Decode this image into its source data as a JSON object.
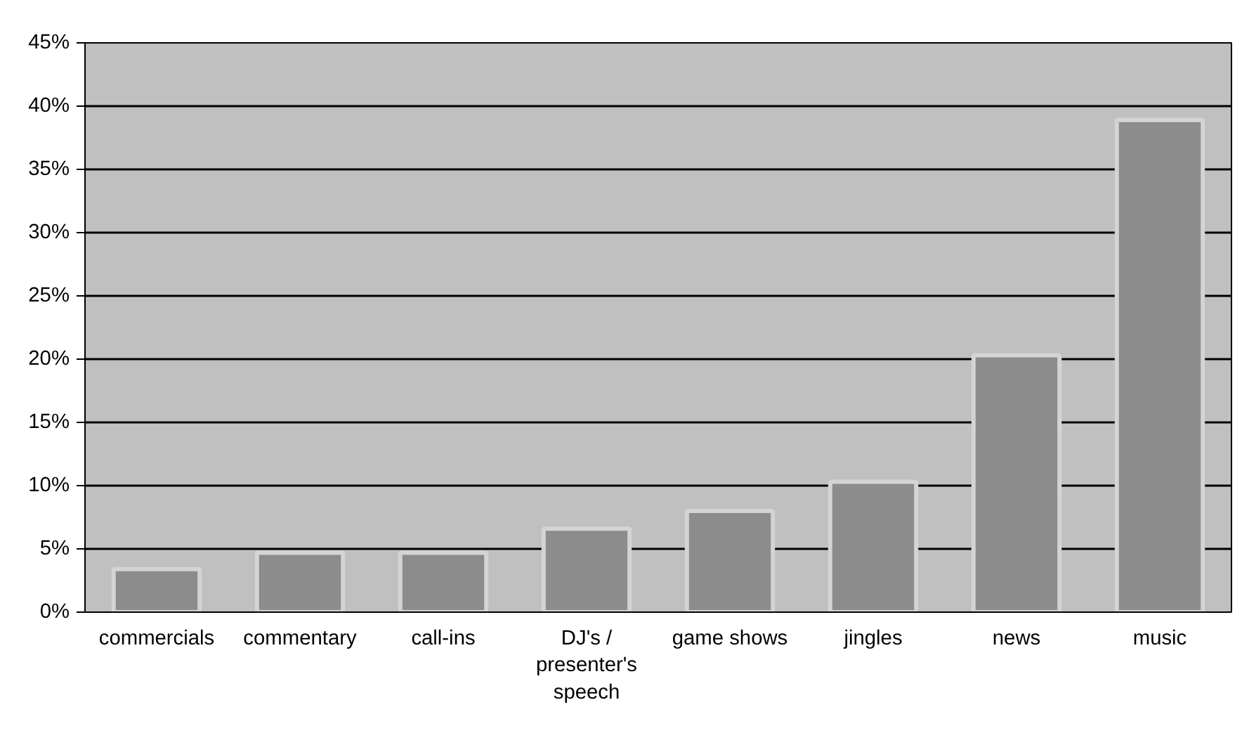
{
  "chart_data": {
    "type": "bar",
    "categories": [
      "commercials",
      "commentary",
      "call-ins",
      "DJ's / presenter's speech",
      "game shows",
      "jingles",
      "news",
      "music"
    ],
    "values": [
      3.4,
      4.7,
      4.7,
      6.6,
      8.0,
      10.3,
      20.3,
      38.9
    ],
    "color": "#8c8c8c",
    "ylim": [
      0,
      45
    ],
    "yticks": [
      {
        "value": 0,
        "label": "0%"
      },
      {
        "value": 5,
        "label": "5%"
      },
      {
        "value": 10,
        "label": "10%"
      },
      {
        "value": 15,
        "label": "15%"
      },
      {
        "value": 20,
        "label": "20%"
      },
      {
        "value": 25,
        "label": "25%"
      },
      {
        "value": 30,
        "label": "30%"
      },
      {
        "value": 35,
        "label": "35%"
      },
      {
        "value": 40,
        "label": "40%"
      },
      {
        "value": 45,
        "label": "45%"
      }
    ],
    "grid": "y"
  }
}
